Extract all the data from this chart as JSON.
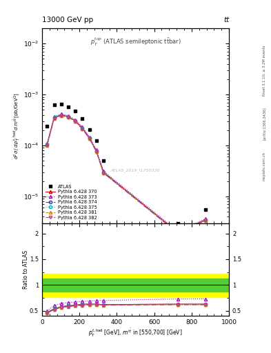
{
  "title_left": "13000 GeV pp",
  "title_right": "tt",
  "rivet_label": "Rivet 3.1.10, ≥ 3.2M events",
  "arxiv_label": "[arXiv:1306.3436]",
  "mcplots_label": "mcplots.cern.ch",
  "watermark": "ATLAS_2019_I1750330",
  "ylim_main": [
    3e-06,
    0.02
  ],
  "ylim_ratio": [
    0.4,
    2.2
  ],
  "atlas_x": [
    27,
    65,
    103,
    141,
    178,
    216,
    254,
    291,
    329,
    725,
    875
  ],
  "atlas_y": [
    0.00024,
    0.00062,
    0.00065,
    0.00058,
    0.00048,
    0.000335,
    0.000205,
    0.000125,
    5e-05,
    3e-06,
    5.5e-06
  ],
  "mc_x": [
    27,
    65,
    103,
    141,
    178,
    216,
    254,
    291,
    329,
    725,
    875
  ],
  "py370_y": [
    0.000105,
    0.000355,
    0.0004,
    0.00037,
    0.000305,
    0.00022,
    0.00014,
    7.8e-05,
    3e-05,
    2e-06,
    3.5e-06
  ],
  "py373_y": [
    0.00011,
    0.00037,
    0.000415,
    0.000385,
    0.00032,
    0.00023,
    0.000147,
    8.2e-05,
    3.15e-05,
    2.1e-06,
    3.65e-06
  ],
  "py374_y": [
    0.000102,
    0.000345,
    0.00039,
    0.00036,
    0.000298,
    0.000214,
    0.000137,
    7.6e-05,
    2.9e-05,
    1.95e-06,
    3.4e-06
  ],
  "py375_y": [
    0.000105,
    0.000355,
    0.0004,
    0.00037,
    0.000305,
    0.00022,
    0.00014,
    7.8e-05,
    3e-05,
    2e-06,
    3.5e-06
  ],
  "py381_y": [
    0.0001,
    0.00034,
    0.000385,
    0.000358,
    0.000295,
    0.000212,
    0.000136,
    7.5e-05,
    2.88e-05,
    1.93e-06,
    3.38e-06
  ],
  "py382_y": [
    0.0001,
    0.00034,
    0.000385,
    0.000358,
    0.000295,
    0.000212,
    0.000136,
    7.5e-05,
    2.88e-05,
    1.93e-06,
    3.38e-06
  ],
  "ratio370_y": [
    0.47,
    0.54,
    0.58,
    0.6,
    0.61,
    0.63,
    0.63,
    0.63,
    0.62,
    0.63,
    0.63
  ],
  "ratio373_y": [
    0.5,
    0.6,
    0.64,
    0.66,
    0.67,
    0.68,
    0.69,
    0.7,
    0.7,
    0.73,
    0.73
  ],
  "ratio374_y": [
    0.46,
    0.53,
    0.57,
    0.59,
    0.6,
    0.61,
    0.62,
    0.62,
    0.62,
    0.62,
    0.62
  ],
  "ratio375_y": [
    0.47,
    0.54,
    0.58,
    0.6,
    0.61,
    0.63,
    0.63,
    0.63,
    0.62,
    0.63,
    0.63
  ],
  "ratio381_y": [
    0.46,
    0.52,
    0.57,
    0.58,
    0.6,
    0.61,
    0.62,
    0.62,
    0.61,
    0.62,
    0.62
  ],
  "ratio382_y": [
    0.46,
    0.52,
    0.57,
    0.58,
    0.6,
    0.61,
    0.62,
    0.62,
    0.61,
    0.62,
    0.62
  ],
  "band_green_lo": 0.87,
  "band_green_hi": 1.12,
  "band_yellow_lo": 0.77,
  "band_yellow_hi": 1.22,
  "color_py370": "#cc0000",
  "color_py373": "#aa00cc",
  "color_py374": "#3333cc",
  "color_py375": "#00aaaa",
  "color_py381": "#cc8800",
  "color_py382": "#cc3388",
  "n_points": 11
}
